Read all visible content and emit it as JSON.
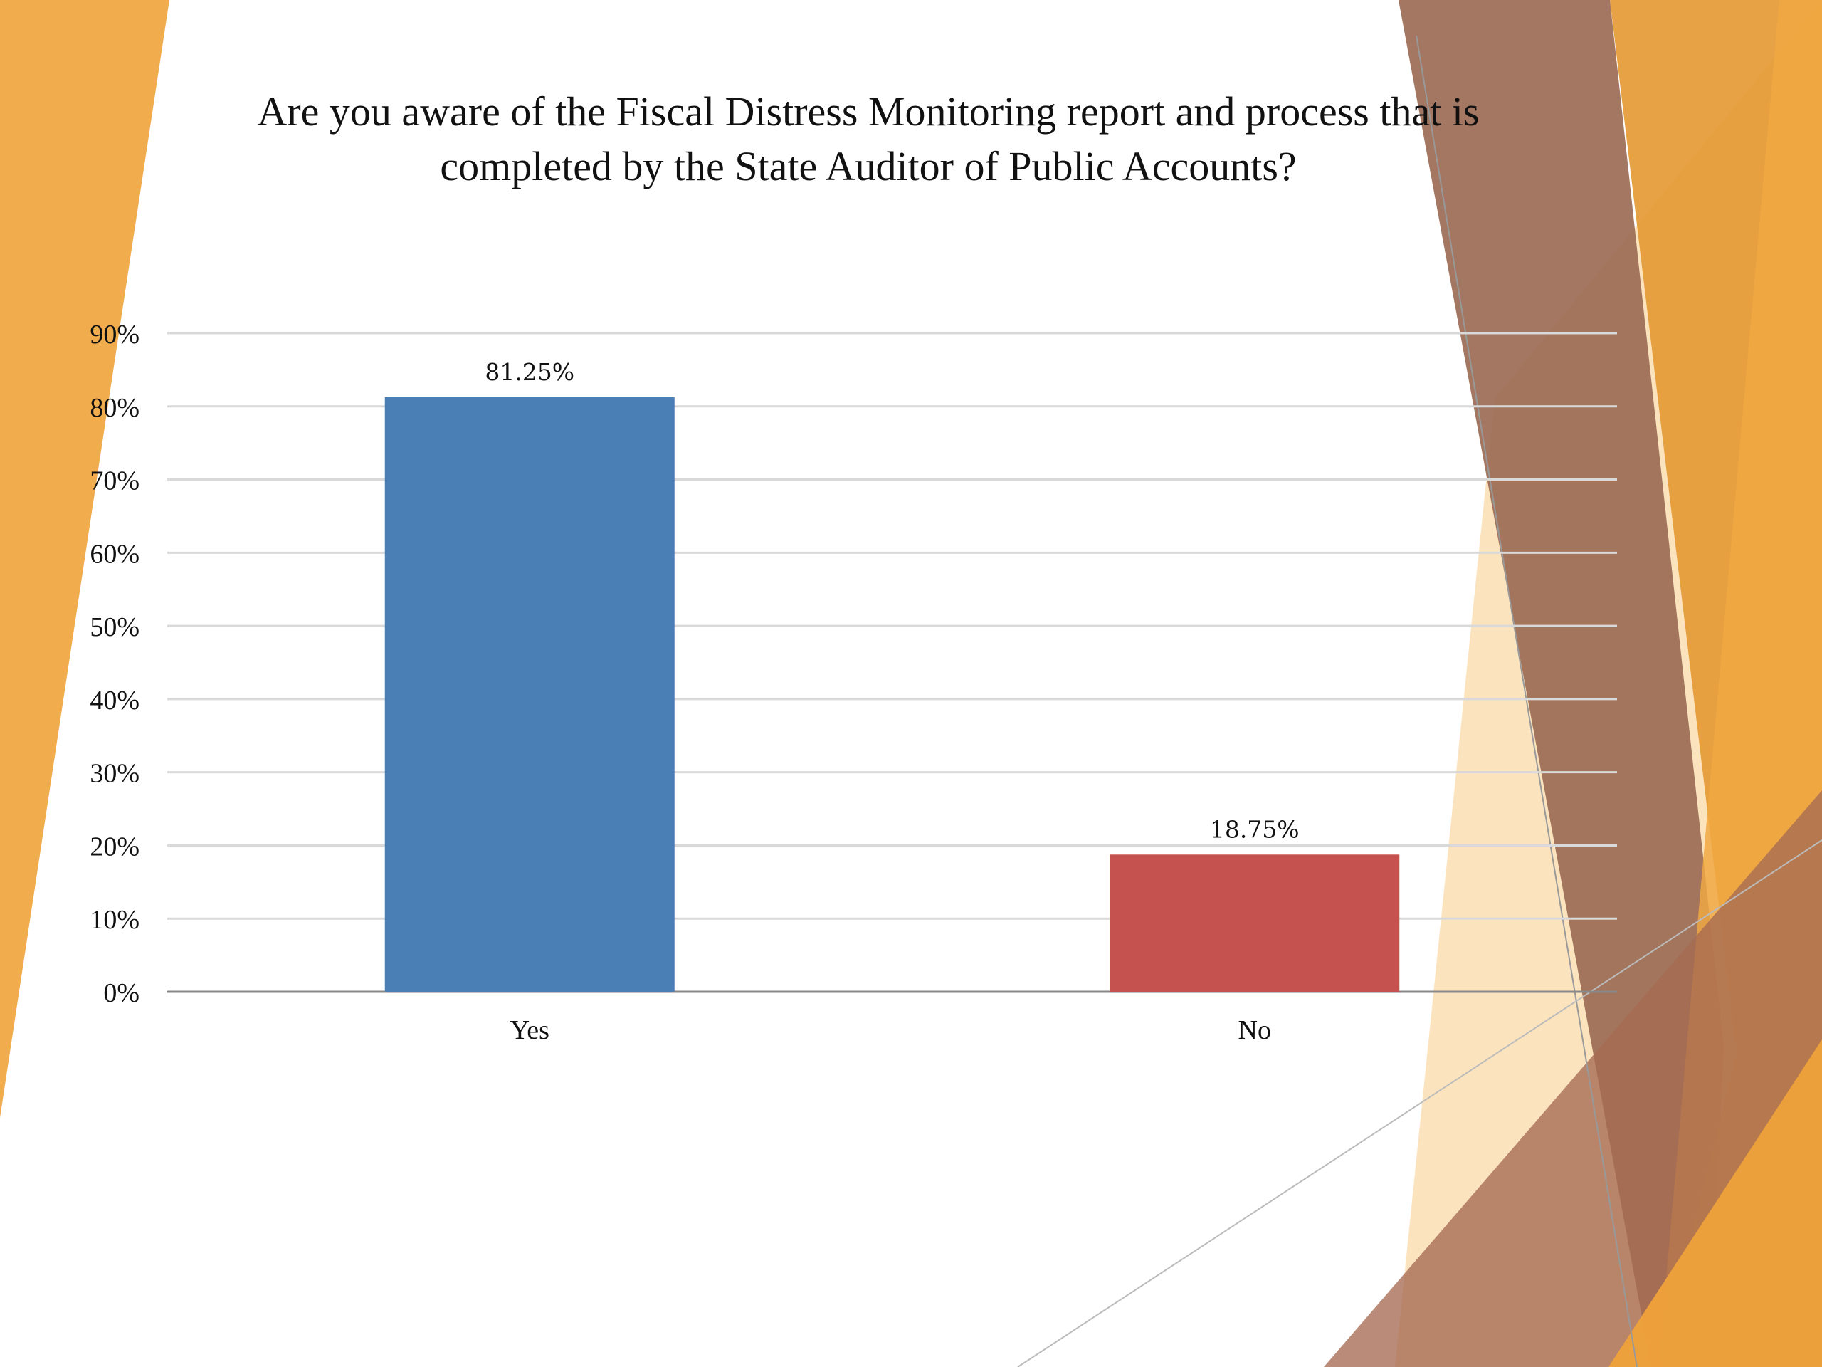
{
  "slide": {
    "title_line1": "Are you aware of the Fiscal Distress Monitoring report and process that is",
    "title_line2": "completed by the State Auditor of Public Accounts?"
  },
  "colors": {
    "yes_bar": "#4A7FB5",
    "no_bar": "#C5524F",
    "gridline": "#D9D9D9",
    "axis_line": "#888888",
    "decor_orange": "#F0A843",
    "decor_brown": "#9B6B55",
    "decor_light": "#F9D9A8"
  },
  "chart_data": {
    "type": "bar",
    "title": "Are you aware of the Fiscal Distress Monitoring report and process that is completed by the State Auditor of Public Accounts?",
    "categories": [
      "Yes",
      "No"
    ],
    "values": [
      81.25,
      18.75
    ],
    "value_labels": [
      "81.25%",
      "18.75%"
    ],
    "ylim": [
      0,
      90
    ],
    "yticks": [
      0,
      10,
      20,
      30,
      40,
      50,
      60,
      70,
      80,
      90
    ],
    "ytick_labels": [
      "0%",
      "10%",
      "20%",
      "30%",
      "40%",
      "50%",
      "60%",
      "70%",
      "80%",
      "90%"
    ],
    "xlabel": "",
    "ylabel": "",
    "grid": true,
    "legend": "none"
  }
}
